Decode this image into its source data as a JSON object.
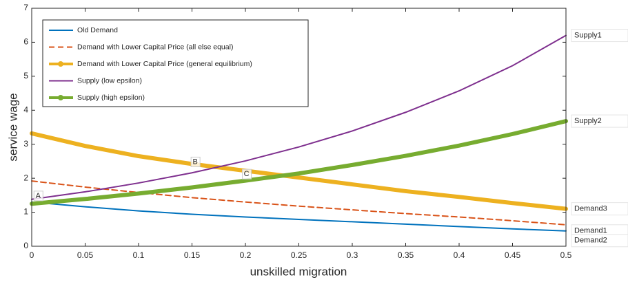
{
  "chart_data": {
    "type": "line",
    "x_label": "unskilled migration",
    "y_label": "service wage",
    "x": [
      0,
      0.05,
      0.1,
      0.15,
      0.2,
      0.25,
      0.3,
      0.35,
      0.4,
      0.45,
      0.5
    ],
    "series": [
      {
        "name": "Old Demand",
        "color": "#0072bd",
        "end_label": "Demand1",
        "values": [
          1.3,
          1.16,
          1.04,
          0.94,
          0.86,
          0.79,
          0.72,
          0.65,
          0.58,
          0.51,
          0.45
        ]
      },
      {
        "name": "Demand with Lower Capital Price (all else equal)",
        "color": "#d95319",
        "line_style": "dashed",
        "end_label": "Demand2",
        "values": [
          1.92,
          1.74,
          1.58,
          1.43,
          1.3,
          1.18,
          1.07,
          0.96,
          0.86,
          0.75,
          0.63
        ]
      },
      {
        "name": "Demand with Lower Capital Price (general equilibrium)",
        "color": "#edb120",
        "marker": true,
        "end_label": "Demand3",
        "values": [
          3.32,
          2.95,
          2.65,
          2.42,
          2.22,
          2.02,
          1.82,
          1.62,
          1.45,
          1.27,
          1.1
        ]
      },
      {
        "name": "Supply (low epsilon)",
        "color": "#7e2f8e",
        "end_label": "Supply1",
        "values": [
          1.38,
          1.6,
          1.86,
          2.16,
          2.51,
          2.92,
          3.39,
          3.94,
          4.57,
          5.31,
          6.2
        ]
      },
      {
        "name": "Supply (high epsilon)",
        "color": "#77ac30",
        "marker": true,
        "end_label": "Supply2",
        "values": [
          1.25,
          1.39,
          1.55,
          1.73,
          1.93,
          2.14,
          2.39,
          2.66,
          2.96,
          3.3,
          3.68
        ]
      }
    ],
    "point_labels": [
      {
        "text": "A",
        "x": 0.006,
        "y": 1.48
      },
      {
        "text": "B",
        "x": 0.153,
        "y": 2.48
      },
      {
        "text": "C",
        "x": 0.201,
        "y": 2.12
      }
    ],
    "xlim": [
      0,
      0.5
    ],
    "xticks": [
      0,
      0.05,
      0.1,
      0.15,
      0.2,
      0.25,
      0.3,
      0.35,
      0.4,
      0.45,
      0.5
    ],
    "ylim": [
      0,
      7
    ],
    "yticks": [
      0,
      1,
      2,
      3,
      4,
      5,
      6,
      7
    ],
    "grid": false,
    "legend": "upper left"
  }
}
